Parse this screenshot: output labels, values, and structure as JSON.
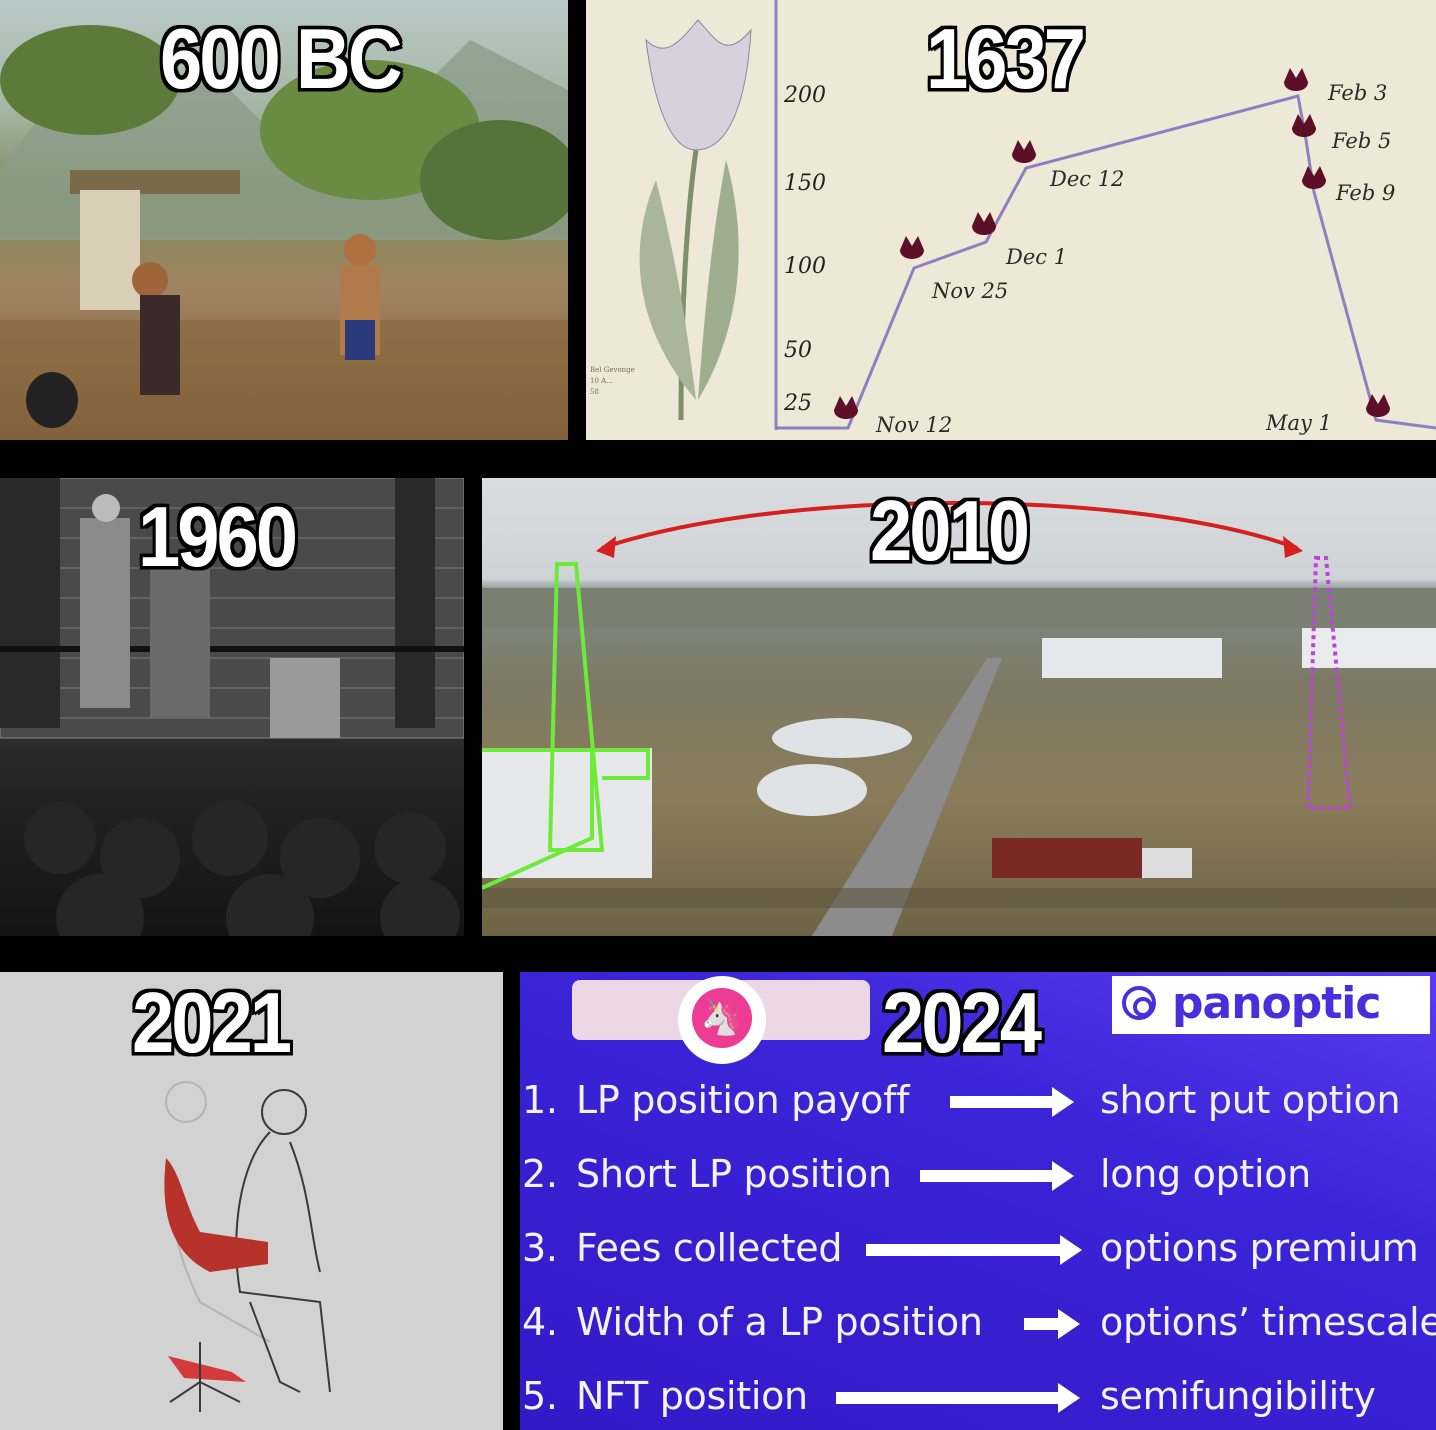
{
  "panels": {
    "ancient": {
      "year": "600 BC"
    },
    "tulip": {
      "year": "1637",
      "y_ticks": [
        "200",
        "150",
        "100",
        "50",
        "25"
      ],
      "point_labels": [
        "Nov 12",
        "Nov 25",
        "Dec 1",
        "Dec 12",
        "Feb 3",
        "Feb 5",
        "Feb 9",
        "May 1"
      ],
      "caption": [
        "Bel Gevonge",
        "10 A...",
        "58"
      ]
    },
    "exchange": {
      "year": "1960"
    },
    "field": {
      "year": "2010"
    },
    "sketch": {
      "year": "2021"
    },
    "panoptic": {
      "year": "2024",
      "brand": "panoptic",
      "rows": [
        {
          "num": "1.",
          "left": "LP position payoff",
          "right": "short put option"
        },
        {
          "num": "2.",
          "left": "Short LP position",
          "right": "long option"
        },
        {
          "num": "3.",
          "left": "Fees collected",
          "right": "options premium"
        },
        {
          "num": "4.",
          "left": "Width of a LP position",
          "right": "options’ timescale"
        },
        {
          "num": "5.",
          "left": "NFT position",
          "right": "semifungibility"
        }
      ]
    }
  },
  "colors": {
    "panoptic_bg": "#3c25d8",
    "tulip_line": "#8f7fc0",
    "tulip_flower": "#5c0f26",
    "arrow_red": "#d4201e",
    "green_outline": "#6dea3a",
    "magenta_outline": "#c040e0",
    "uniswap_pink": "#ee3b93"
  },
  "icons": [
    "unicorn-icon",
    "panoptic-logo-icon",
    "tulip-icon",
    "arrow-icon"
  ]
}
